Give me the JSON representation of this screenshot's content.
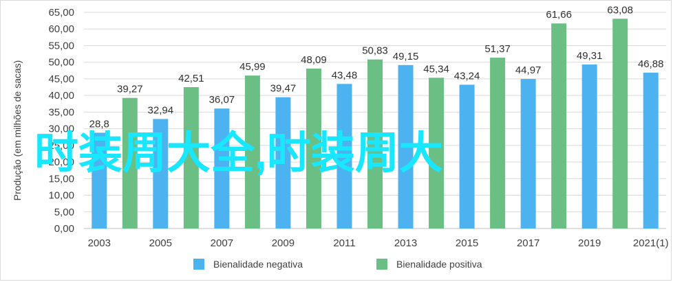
{
  "chart_data": {
    "type": "bar",
    "ylabel": "Produção (em milhões de sacas)",
    "ylim": [
      0,
      65
    ],
    "yticks": [
      "0,00",
      "5,00",
      "10,00",
      "15,00",
      "20,00",
      "25,00",
      "30,00",
      "35,00",
      "40,00",
      "45,00",
      "50,00",
      "55,00",
      "60,00",
      "65,00"
    ],
    "xticks": [
      "2003",
      "2005",
      "2007",
      "2009",
      "2011",
      "2013",
      "2015",
      "2017",
      "2019",
      "2021(1)"
    ],
    "grid": true,
    "legend_position": "bottom",
    "colors": {
      "negativa": "#4db3f0",
      "positiva": "#6cbf84"
    },
    "bars": [
      {
        "year": 2003,
        "value": 28.8,
        "label": "28,8",
        "series": "negativa"
      },
      {
        "year": 2004,
        "value": 39.27,
        "label": "39,27",
        "series": "positiva"
      },
      {
        "year": 2005,
        "value": 32.94,
        "label": "32,94",
        "series": "negativa"
      },
      {
        "year": 2006,
        "value": 42.51,
        "label": "42,51",
        "series": "positiva"
      },
      {
        "year": 2007,
        "value": 36.07,
        "label": "36,07",
        "series": "negativa"
      },
      {
        "year": 2008,
        "value": 45.99,
        "label": "45,99",
        "series": "positiva"
      },
      {
        "year": 2009,
        "value": 39.47,
        "label": "39,47",
        "series": "negativa"
      },
      {
        "year": 2010,
        "value": 48.09,
        "label": "48,09",
        "series": "positiva"
      },
      {
        "year": 2011,
        "value": 43.48,
        "label": "43,48",
        "series": "negativa"
      },
      {
        "year": 2012,
        "value": 50.83,
        "label": "50,83",
        "series": "positiva"
      },
      {
        "year": 2013,
        "value": 49.15,
        "label": "49,15",
        "series": "negativa"
      },
      {
        "year": 2014,
        "value": 45.34,
        "label": "45,34",
        "series": "positiva"
      },
      {
        "year": 2015,
        "value": 43.24,
        "label": "43,24",
        "series": "negativa"
      },
      {
        "year": 2016,
        "value": 51.37,
        "label": "51,37",
        "series": "positiva"
      },
      {
        "year": 2017,
        "value": 44.97,
        "label": "44,97",
        "series": "negativa"
      },
      {
        "year": 2018,
        "value": 61.66,
        "label": "61,66",
        "series": "positiva"
      },
      {
        "year": 2019,
        "value": 49.31,
        "label": "49,31",
        "series": "negativa"
      },
      {
        "year": 2020,
        "value": 63.08,
        "label": "63,08",
        "series": "positiva"
      },
      {
        "year": 2021,
        "value": 46.88,
        "label": "46,88",
        "series": "negativa"
      }
    ],
    "series": [
      {
        "key": "negativa",
        "name": "Bienalidade negativa"
      },
      {
        "key": "positiva",
        "name": "Bienalidade positiva"
      }
    ]
  },
  "overlay_text": "时装周大全,时装周大"
}
